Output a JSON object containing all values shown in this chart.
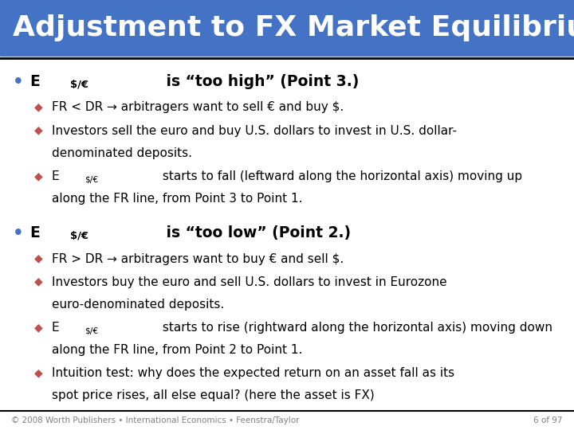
{
  "title": "Adjustment to FX Market Equilibrium",
  "title_bg_color": "#4472C4",
  "title_text_color": "#FFFFFF",
  "title_fontsize": 26,
  "bg_color": "#FFFFFF",
  "bullet_color": "#4472C4",
  "sub_bullet_color": "#C0504D",
  "footer_text": "© 2008 Worth Publishers • International Economics • Feenstra/Taylor",
  "footer_right": "6 of 97",
  "footer_color": "#808080",
  "section1_sub1": "FR < DR → arbitragers want to sell € and buy $.",
  "section1_sub2_l1": "Investors sell the euro and buy U.S. dollars to invest in U.S. dollar-",
  "section1_sub2_l2": "denominated deposits.",
  "section1_sub3_l1": " starts to fall (leftward along the horizontal axis) moving up",
  "section1_sub3_l2": "along the FR line, from Point 3 to Point 1.",
  "section2_sub1": "FR > DR → arbitragers want to buy € and sell $.",
  "section2_sub2_l1": "Investors buy the euro and sell U.S. dollars to invest in Eurozone",
  "section2_sub2_l2": "euro-denominated deposits.",
  "section2_sub3_l1": " starts to rise (rightward along the horizontal axis) moving down",
  "section2_sub3_l2": "along the FR line, from Point 2 to Point 1.",
  "section2_sub4_l1": "Intuition test: why does the expected return on an asset fall as its",
  "section2_sub4_l2": "spot price rises, all else equal? (here the asset is FX)"
}
